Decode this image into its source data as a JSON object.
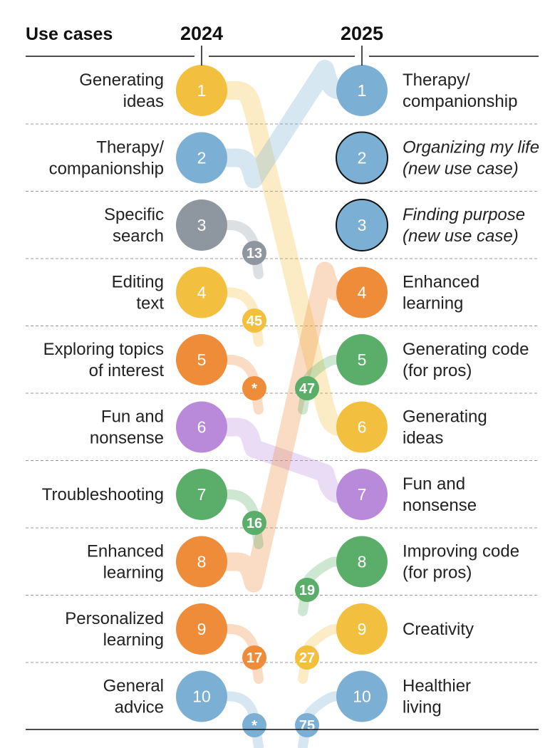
{
  "chart_data": {
    "type": "slope",
    "column_header_label": "Use cases",
    "year_left": "2024",
    "year_right": "2025",
    "colors": {
      "yellow": "#F2C03E",
      "blue": "#7BAFD4",
      "gray": "#8E979F",
      "orange": "#EF8C3A",
      "green": "#5BAE6A",
      "purple": "#B98AD9"
    },
    "rows_2024": [
      {
        "rank": "1",
        "lines": [
          "Generating",
          "ideas"
        ],
        "color": "yellow",
        "new_rank": 6
      },
      {
        "rank": "2",
        "lines": [
          "Therapy/",
          "companionship"
        ],
        "color": "blue",
        "new_rank": 1
      },
      {
        "rank": "3",
        "lines": [
          "Specific",
          "search"
        ],
        "color": "gray",
        "drop_badge": "13"
      },
      {
        "rank": "4",
        "lines": [
          "Editing",
          "text"
        ],
        "color": "yellow",
        "drop_badge": "45"
      },
      {
        "rank": "5",
        "lines": [
          "Exploring topics",
          "of interest"
        ],
        "color": "orange",
        "drop_badge": "*"
      },
      {
        "rank": "6",
        "lines": [
          "Fun and",
          "nonsense"
        ],
        "color": "purple",
        "new_rank": 7
      },
      {
        "rank": "7",
        "lines": [
          "Troubleshooting"
        ],
        "color": "green",
        "drop_badge": "16"
      },
      {
        "rank": "8",
        "lines": [
          "Enhanced",
          "learning"
        ],
        "color": "orange",
        "new_rank": 4
      },
      {
        "rank": "9",
        "lines": [
          "Personalized",
          "learning"
        ],
        "color": "orange",
        "drop_badge": "17"
      },
      {
        "rank": "10",
        "lines": [
          "General",
          "advice"
        ],
        "color": "blue",
        "drop_badge": "*"
      }
    ],
    "rows_2025": [
      {
        "rank": "1",
        "lines": [
          "Therapy/",
          "companionship"
        ],
        "color": "blue"
      },
      {
        "rank": "2",
        "lines": [
          "Organizing my life",
          "(new use case)"
        ],
        "color": "blue",
        "is_new": true
      },
      {
        "rank": "3",
        "lines": [
          "Finding purpose",
          "(new use case)"
        ],
        "color": "blue",
        "is_new": true
      },
      {
        "rank": "4",
        "lines": [
          "Enhanced",
          "learning"
        ],
        "color": "orange"
      },
      {
        "rank": "5",
        "lines": [
          "Generating code",
          "(for pros)"
        ],
        "color": "green",
        "prev_badge": "47"
      },
      {
        "rank": "6",
        "lines": [
          "Generating",
          "ideas"
        ],
        "color": "yellow"
      },
      {
        "rank": "7",
        "lines": [
          "Fun and",
          "nonsense"
        ],
        "color": "purple"
      },
      {
        "rank": "8",
        "lines": [
          "Improving code",
          "(for pros)"
        ],
        "color": "green",
        "prev_badge": "19"
      },
      {
        "rank": "9",
        "lines": [
          "Creativity"
        ],
        "color": "yellow",
        "prev_badge": "27"
      },
      {
        "rank": "10",
        "lines": [
          "Healthier",
          "living"
        ],
        "color": "blue",
        "prev_badge": "75"
      }
    ]
  }
}
